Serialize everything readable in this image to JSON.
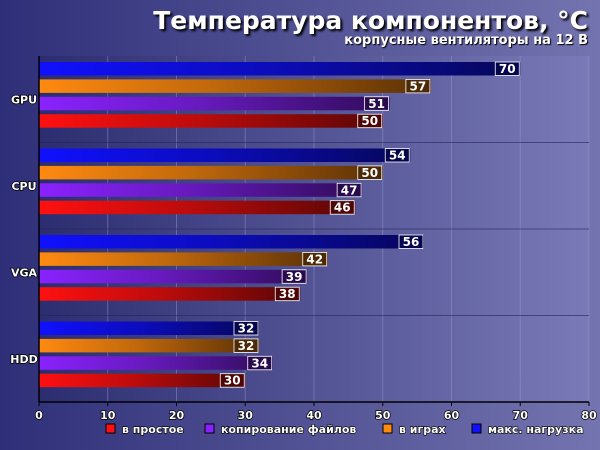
{
  "chart_data": {
    "type": "bar",
    "orientation": "horizontal",
    "title": "Температура компонентов, °C",
    "subtitle": "корпусные вентиляторы на 12 В",
    "categories": [
      "GPU",
      "CPU",
      "VGA",
      "HDD"
    ],
    "series": [
      {
        "name": "в простое",
        "color": "#ff1010",
        "values": [
          50,
          46,
          38,
          30
        ]
      },
      {
        "name": "копирование файлов",
        "color": "#8a22ff",
        "values": [
          51,
          47,
          39,
          34
        ]
      },
      {
        "name": "в играх",
        "color": "#ff8a10",
        "values": [
          57,
          50,
          42,
          32
        ]
      },
      {
        "name": "макс. нагрузка",
        "color": "#1010ff",
        "values": [
          70,
          54,
          56,
          32
        ]
      }
    ],
    "xlim": [
      0,
      80
    ],
    "xticks": [
      0,
      10,
      20,
      30,
      40,
      50,
      60,
      70,
      80
    ],
    "legend_position": "bottom",
    "grid": true
  }
}
